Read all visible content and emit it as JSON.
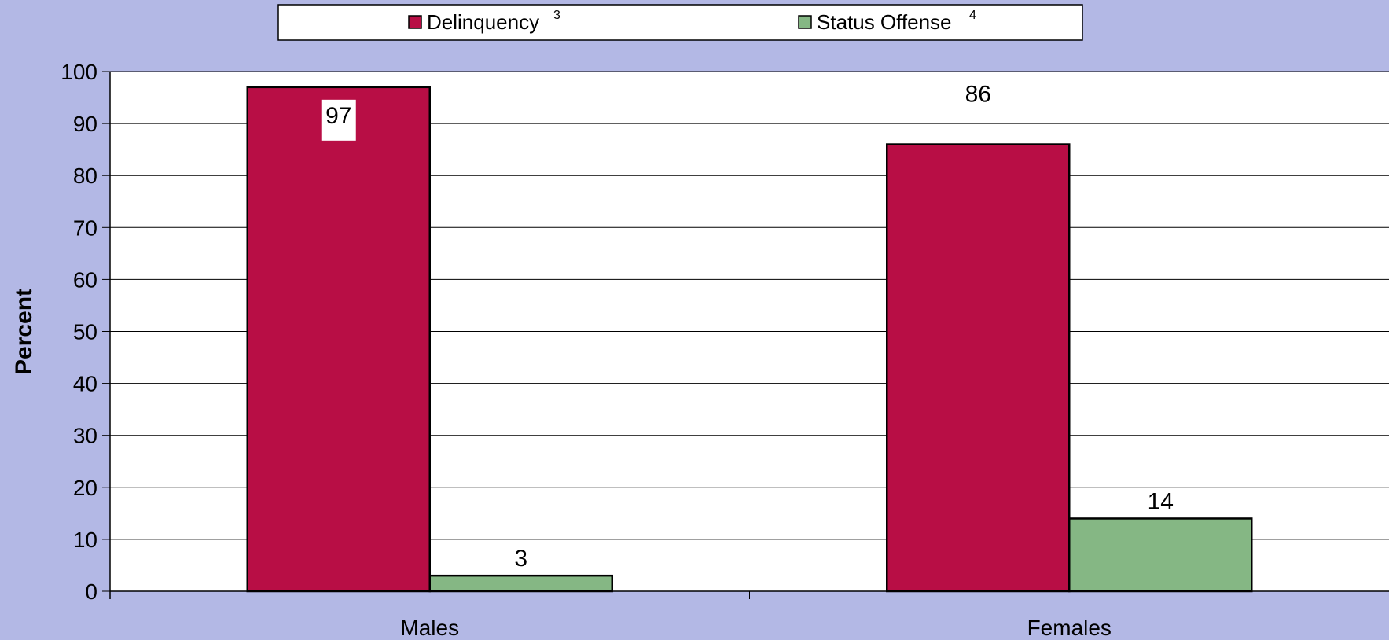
{
  "chart_data": {
    "type": "bar",
    "categories": [
      "Males",
      "Females"
    ],
    "series": [
      {
        "name": "Delinquency",
        "superscript": "3",
        "values": [
          97,
          86
        ],
        "color": "#b80e45"
      },
      {
        "name": "Status Offense",
        "superscript": "4",
        "values": [
          3,
          14
        ],
        "color": "#85b784"
      }
    ],
    "title": "",
    "xlabel": "",
    "ylabel": "Percent",
    "ylim": [
      0,
      100
    ],
    "yticks": [
      0,
      10,
      20,
      30,
      40,
      50,
      60,
      70,
      80,
      90,
      100
    ],
    "grid": true,
    "legend_position": "top"
  },
  "colors": {
    "background": "#b3b8e5",
    "plot_area": "#ffffff"
  }
}
